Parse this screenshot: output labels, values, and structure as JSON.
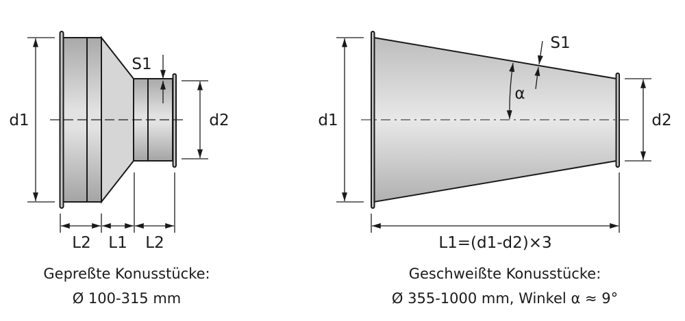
{
  "left_figure": {
    "labels": {
      "d1": "d1",
      "d2": "d2",
      "s1": "S1",
      "l2_left": "L2",
      "l1": "L1",
      "l2_right": "L2"
    },
    "caption_line1": "Gepreßte Konusstücke:",
    "caption_line2": "Ø 100-315 mm"
  },
  "right_figure": {
    "labels": {
      "d1": "d1",
      "d2": "d2",
      "s1": "S1",
      "alpha": "α",
      "l1_formula": "L1=(d1-d2)×3"
    },
    "caption_line1": "Geschweißte Konusstücke:",
    "caption_line2": "Ø 355-1000 mm, Winkel α ≈ 9°"
  },
  "colors": {
    "metal_light": "#e6e6e6",
    "metal_dark": "#a8a8a8",
    "line": "#1a1a1a"
  }
}
